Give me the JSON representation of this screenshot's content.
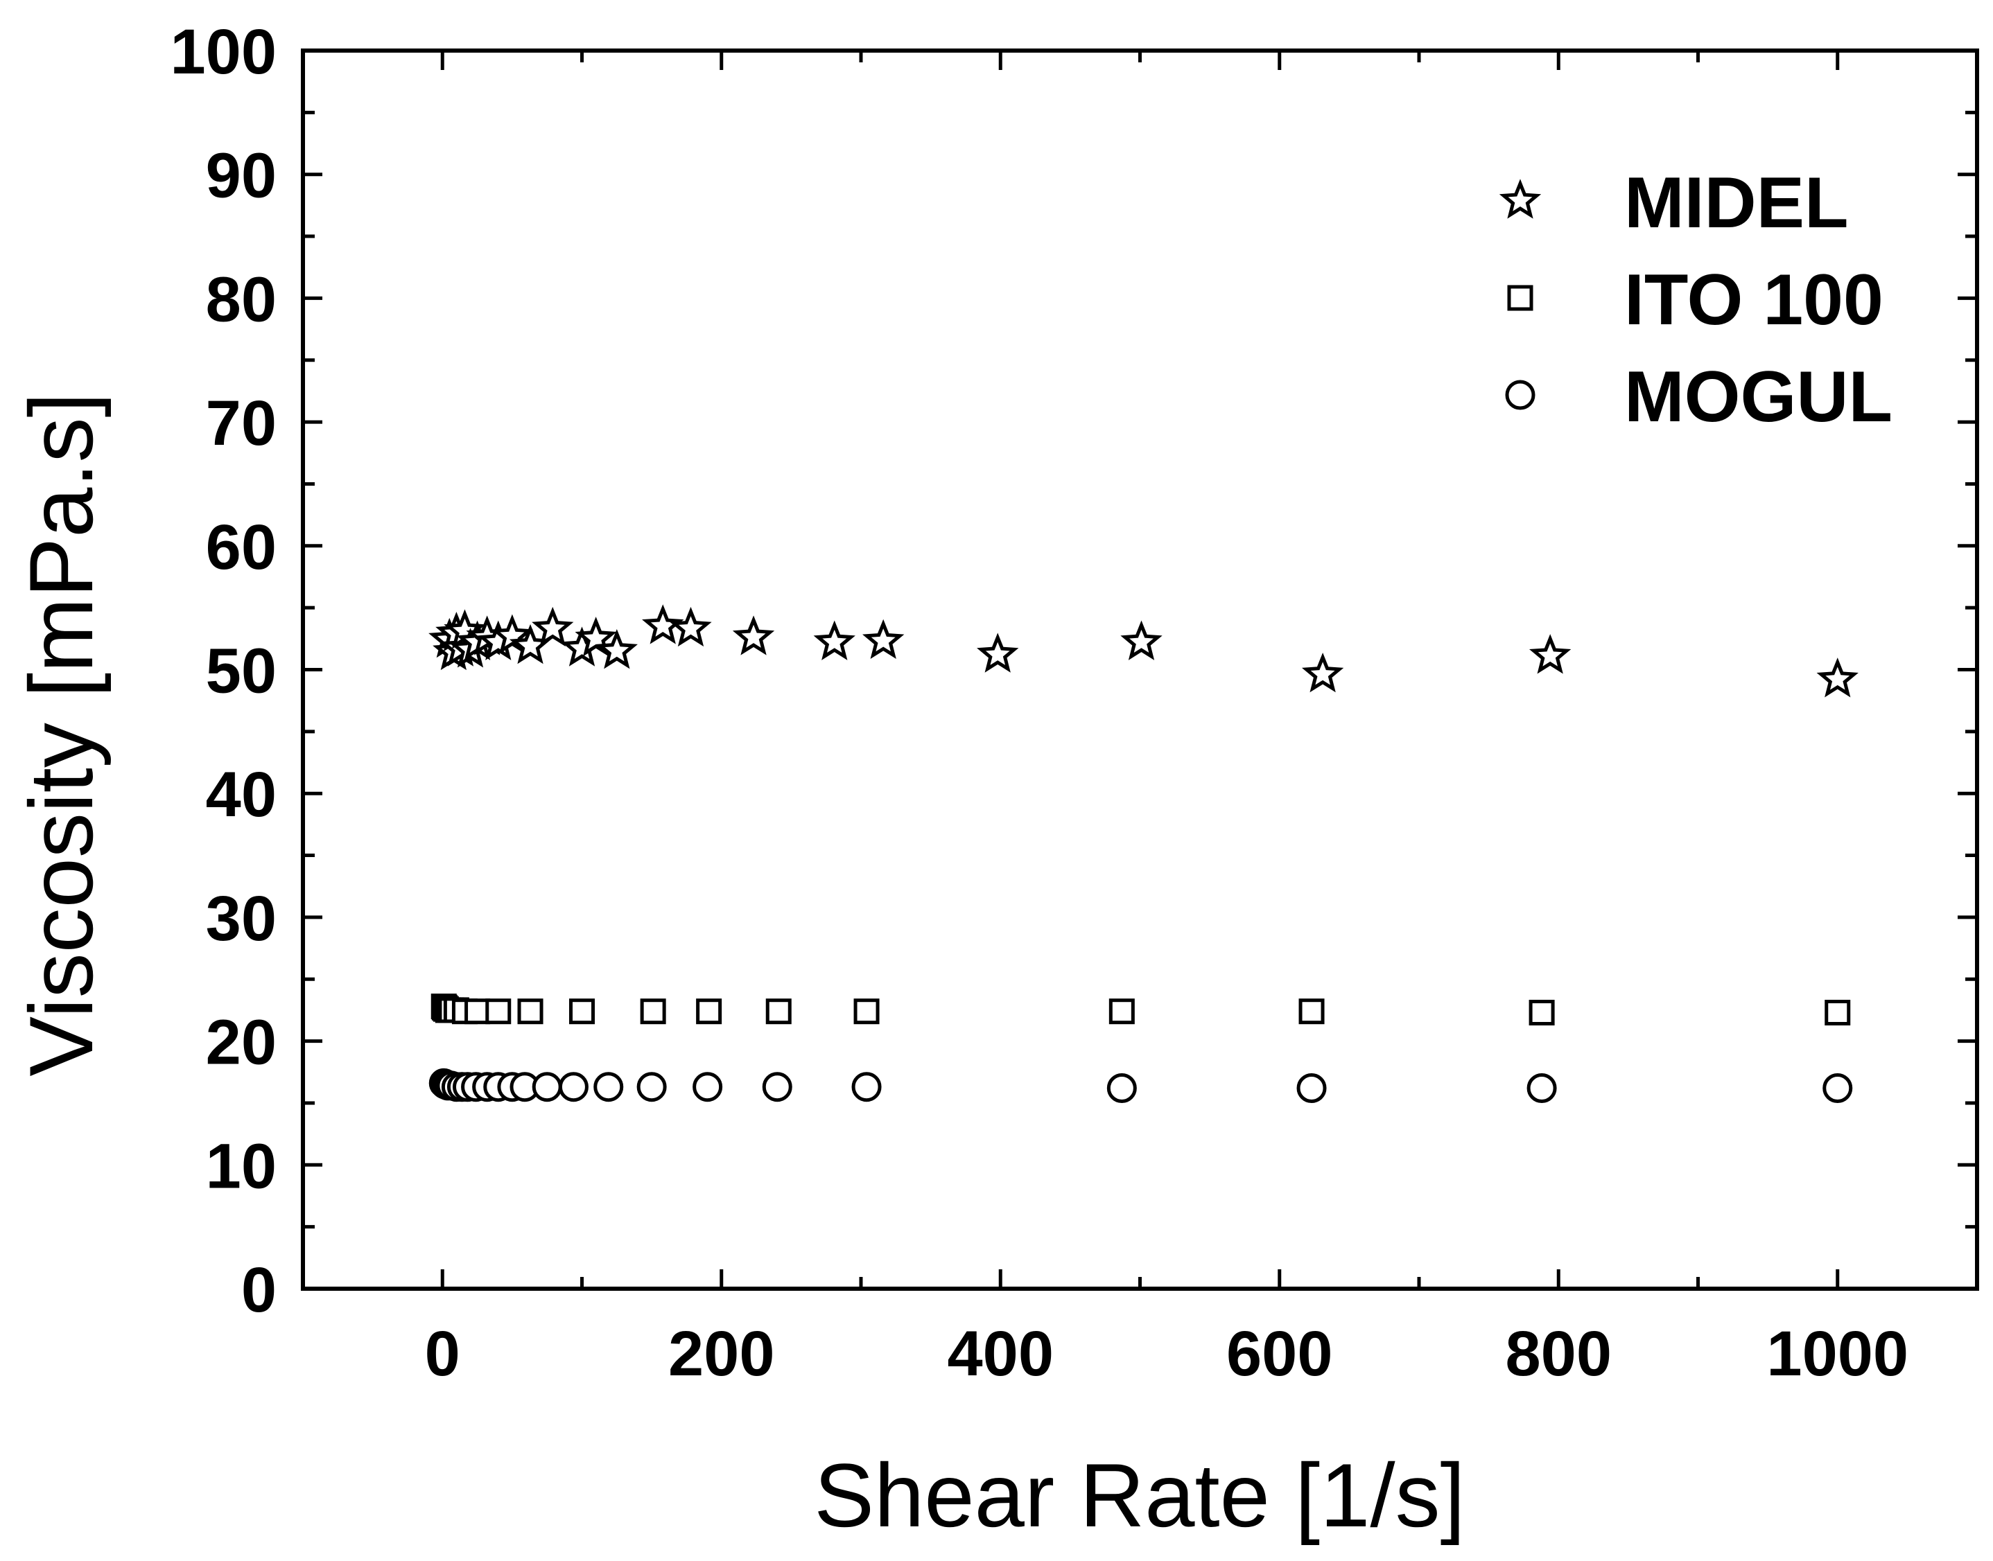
{
  "chart_data": {
    "type": "scatter",
    "title": "",
    "xlabel": "Shear Rate [1/s]",
    "ylabel": "Viscosity [mPa.s]",
    "xlim": [
      -100,
      1100
    ],
    "ylim": [
      0,
      100
    ],
    "xticks": [
      0,
      200,
      400,
      600,
      800,
      1000
    ],
    "yticks": [
      0,
      10,
      20,
      30,
      40,
      50,
      60,
      70,
      80,
      90,
      100
    ],
    "xtick_labels": [
      "0",
      "200",
      "400",
      "600",
      "800",
      "1000"
    ],
    "ytick_labels": [
      "0",
      "10",
      "20",
      "30",
      "40",
      "50",
      "60",
      "70",
      "80",
      "90",
      "100"
    ],
    "legend_position": "top-right",
    "grid": false,
    "series": [
      {
        "name": "MIDEL",
        "marker": "star",
        "x": [
          5,
          8,
          10,
          13,
          16,
          20,
          25,
          32,
          40,
          50,
          63,
          79,
          100,
          110,
          125,
          158,
          178,
          223,
          281,
          316,
          398,
          501,
          631,
          794,
          1000
        ],
        "y": [
          52.4,
          51.4,
          52.9,
          51.7,
          53.1,
          51.6,
          52.2,
          52.6,
          52.2,
          52.7,
          51.9,
          53.3,
          51.7,
          52.5,
          51.5,
          53.5,
          53.3,
          52.6,
          52.2,
          52.3,
          51.2,
          52.2,
          49.6,
          51.1,
          49.2
        ]
      },
      {
        "name": "ITO 100",
        "marker": "square",
        "x": [
          1,
          1.6,
          2.5,
          4,
          6.3,
          10,
          16,
          25,
          40,
          63,
          100,
          151,
          191,
          241,
          304,
          487,
          623,
          788,
          1000
        ],
        "y": [
          22.8,
          22.7,
          22.6,
          22.5,
          22.5,
          22.5,
          22.4,
          22.4,
          22.4,
          22.4,
          22.4,
          22.4,
          22.4,
          22.4,
          22.4,
          22.4,
          22.4,
          22.3,
          22.3
        ]
      },
      {
        "name": "MOGUL",
        "marker": "circle",
        "x": [
          1,
          2,
          3,
          4,
          6.3,
          10,
          14,
          18,
          24,
          32,
          40,
          50,
          59,
          75,
          94,
          119,
          150,
          190,
          240,
          304,
          487,
          623,
          788,
          1000
        ],
        "y": [
          16.6,
          16.5,
          16.5,
          16.4,
          16.4,
          16.3,
          16.3,
          16.3,
          16.3,
          16.3,
          16.3,
          16.3,
          16.3,
          16.3,
          16.3,
          16.3,
          16.3,
          16.3,
          16.3,
          16.3,
          16.2,
          16.2,
          16.2,
          16.2
        ]
      }
    ]
  }
}
